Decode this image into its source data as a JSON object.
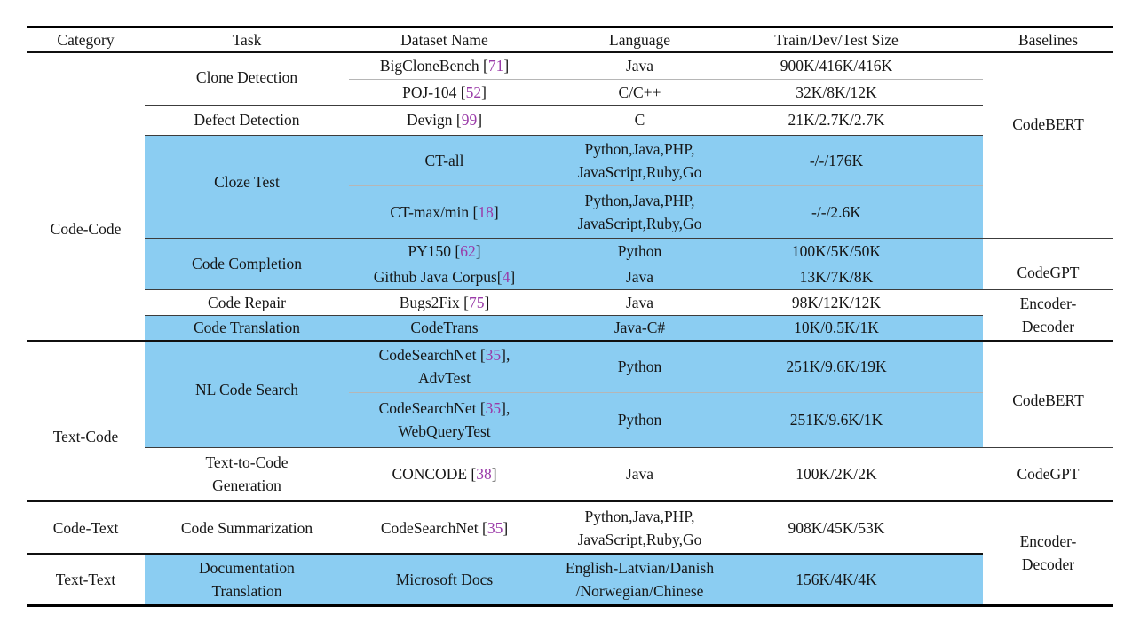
{
  "colors": {
    "highlight": "#8bcdf2",
    "citation": "#9a3aa8"
  },
  "header": {
    "category": "Category",
    "task": "Task",
    "dataset": "Dataset Name",
    "language": "Language",
    "size": "Train/Dev/Test Size",
    "baselines": "Baselines"
  },
  "categories": {
    "code_code": "Code-Code",
    "text_code": "Text-Code",
    "code_text": "Code-Text",
    "text_text": "Text-Text"
  },
  "tasks": {
    "clone_detection": "Clone Detection",
    "defect_detection": "Defect Detection",
    "cloze_test": "Cloze Test",
    "code_completion": "Code Completion",
    "code_repair": "Code Repair",
    "code_translation": "Code Translation",
    "nl_code_search": "NL Code Search",
    "text_to_code_generation": "Text-to-Code\nGeneration",
    "code_summarization": "Code Summarization",
    "documentation_translation": "Documentation\nTranslation"
  },
  "baselines": {
    "codebert_1": "CodeBERT",
    "codegpt_1": "CodeGPT",
    "encoder_decoder_1": "Encoder-\nDecoder",
    "codebert_2": "CodeBERT",
    "codegpt_2": "CodeGPT",
    "encoder_decoder_2": "Encoder-\nDecoder"
  },
  "rows": {
    "bigclonebench": {
      "dataset": [
        {
          "t": "BigCloneBench ["
        },
        {
          "t": "71",
          "cite": true
        },
        {
          "t": "]"
        }
      ],
      "language": "Java",
      "size": "900K/416K/416K"
    },
    "poj104": {
      "dataset": [
        {
          "t": "POJ-104 ["
        },
        {
          "t": "52",
          "cite": true
        },
        {
          "t": "]"
        }
      ],
      "language": "C/C++",
      "size": "32K/8K/12K"
    },
    "devign": {
      "dataset": [
        {
          "t": "Devign ["
        },
        {
          "t": "99",
          "cite": true
        },
        {
          "t": "]"
        }
      ],
      "language": "C",
      "size": "21K/2.7K/2.7K"
    },
    "ct_all": {
      "dataset": [
        {
          "t": "CT-all"
        }
      ],
      "language": "Python,Java,PHP,\nJavaScript,Ruby,Go",
      "size": "-/-/176K"
    },
    "ct_maxmin": {
      "dataset": [
        {
          "t": "CT-max/min ["
        },
        {
          "t": "18",
          "cite": true
        },
        {
          "t": "]"
        }
      ],
      "language": "Python,Java,PHP,\nJavaScript,Ruby,Go",
      "size": "-/-/2.6K"
    },
    "py150": {
      "dataset": [
        {
          "t": "PY150 ["
        },
        {
          "t": "62",
          "cite": true
        },
        {
          "t": "]"
        }
      ],
      "language": "Python",
      "size": "100K/5K/50K"
    },
    "github_java_corpus": {
      "dataset": [
        {
          "t": "Github Java Corpus["
        },
        {
          "t": "4",
          "cite": true
        },
        {
          "t": "]"
        }
      ],
      "language": "Java",
      "size": "13K/7K/8K"
    },
    "bugs2fix": {
      "dataset": [
        {
          "t": "Bugs2Fix ["
        },
        {
          "t": "75",
          "cite": true
        },
        {
          "t": "]"
        }
      ],
      "language": "Java",
      "size": "98K/12K/12K"
    },
    "codetrans": {
      "dataset": [
        {
          "t": "CodeTrans"
        }
      ],
      "language": "Java-C#",
      "size": "10K/0.5K/1K"
    },
    "csn_advtest": {
      "dataset": [
        {
          "t": "CodeSearchNet ["
        },
        {
          "t": "35",
          "cite": true
        },
        {
          "t": "],"
        },
        {
          "br": true
        },
        {
          "t": "AdvTest"
        }
      ],
      "language": "Python",
      "size": "251K/9.6K/19K"
    },
    "csn_webquerytest": {
      "dataset": [
        {
          "t": "CodeSearchNet ["
        },
        {
          "t": "35",
          "cite": true
        },
        {
          "t": "],"
        },
        {
          "br": true
        },
        {
          "t": "WebQueryTest"
        }
      ],
      "language": "Python",
      "size": "251K/9.6K/1K"
    },
    "concode": {
      "dataset": [
        {
          "t": "CONCODE ["
        },
        {
          "t": "38",
          "cite": true
        },
        {
          "t": "]"
        }
      ],
      "language": "Java",
      "size": "100K/2K/2K"
    },
    "csn_summarization": {
      "dataset": [
        {
          "t": "CodeSearchNet ["
        },
        {
          "t": "35",
          "cite": true
        },
        {
          "t": "]"
        }
      ],
      "language": "Python,Java,PHP,\nJavaScript,Ruby,Go",
      "size": "908K/45K/53K"
    },
    "microsoft_docs": {
      "dataset": [
        {
          "t": "Microsoft Docs"
        }
      ],
      "language": "English-Latvian/Danish\n/Norwegian/Chinese",
      "size": "156K/4K/4K"
    }
  }
}
